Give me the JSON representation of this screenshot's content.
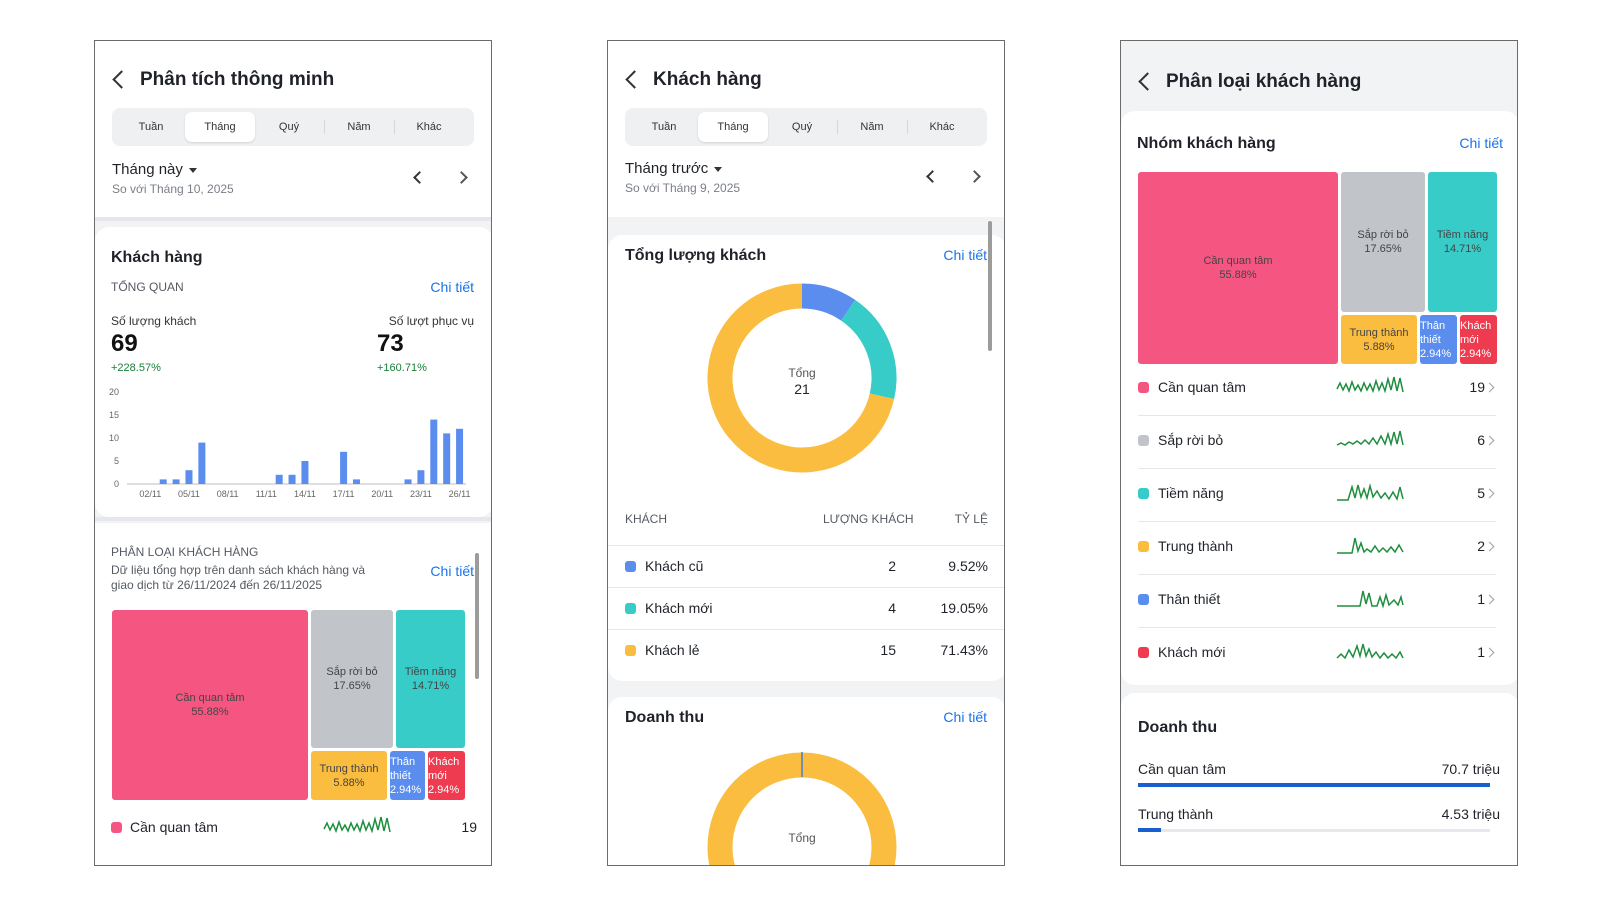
{
  "screen1": {
    "title": "Phân tích thông minh",
    "tabs": [
      "Tuần",
      "Tháng",
      "Quý",
      "Năm",
      "Khác"
    ],
    "active_tab": "Tháng",
    "period": "Tháng này",
    "compare": "So với Tháng 10, 2025",
    "customers": {
      "title": "Khách hàng",
      "overview_label": "TỔNG QUAN",
      "detail": "Chi tiết",
      "metric1_label": "Số lượng khách",
      "metric1_value": "69",
      "metric1_growth": "+228.57%",
      "metric2_label": "Số lượt phục vụ",
      "metric2_value": "73",
      "metric2_growth": "+160.71%"
    },
    "classification": {
      "title": "PHÂN LOẠI KHÁCH HÀNG",
      "desc_line1": "Dữ liệu tổng hợp trên danh sách khách hàng và",
      "desc_line2": "giao dịch từ 26/11/2024 đến 26/11/2025",
      "detail": "Chi tiết",
      "first_row_label": "Cần quan tâm",
      "first_row_value": "19"
    }
  },
  "chart_data": {
    "type": "bar",
    "title": "",
    "ylim": [
      0,
      20
    ],
    "yticks": [
      "0",
      "5",
      "10",
      "15",
      "20"
    ],
    "x_tick_labels": [
      "02/11",
      "05/11",
      "08/11",
      "11/11",
      "14/11",
      "17/11",
      "20/11",
      "23/11",
      "26/11"
    ],
    "days": [
      "01/11",
      "02/11",
      "03/11",
      "04/11",
      "05/11",
      "06/11",
      "07/11",
      "08/11",
      "09/11",
      "10/11",
      "11/11",
      "12/11",
      "13/11",
      "14/11",
      "15/11",
      "16/11",
      "17/11",
      "18/11",
      "19/11",
      "20/11",
      "21/11",
      "22/11",
      "23/11",
      "24/11",
      "25/11",
      "26/11"
    ],
    "values": [
      0,
      0,
      1,
      1,
      3,
      9,
      0,
      0,
      0,
      0,
      0,
      2,
      2,
      5,
      0,
      0,
      7,
      1,
      0,
      0,
      0,
      1,
      3,
      14,
      11,
      12
    ],
    "color": "#5b8def",
    "grid": false
  },
  "segments": {
    "can_quan_tam": {
      "name": "Cần quan tâm",
      "pct": "55.88%",
      "count": "19",
      "color": "#f55681"
    },
    "sap_roi_bo": {
      "name": "Sắp rời bỏ",
      "pct": "17.65%",
      "count": "6",
      "color": "#c1c4c9"
    },
    "tiem_nang": {
      "name": "Tiềm năng",
      "pct": "14.71%",
      "count": "5",
      "color": "#38ccc8"
    },
    "trung_thanh": {
      "name": "Trung thành",
      "pct": "5.88%",
      "count": "2",
      "color": "#fbbd3f"
    },
    "than_thiet": {
      "name_l1": "Thân",
      "name_l2": "thiết",
      "name": "Thân thiết",
      "pct": "2.94%",
      "count": "1",
      "color": "#5b8def"
    },
    "khach_moi": {
      "name_l1": "Khách",
      "name_l2": "mới",
      "name": "Khách mới",
      "pct": "2.94%",
      "count": "1",
      "color": "#ee3b4f"
    }
  },
  "screen2": {
    "title": "Khách hàng",
    "tabs": [
      "Tuần",
      "Tháng",
      "Quý",
      "Năm",
      "Khác"
    ],
    "active_tab": "Tháng",
    "period": "Tháng trước",
    "compare": "So với Tháng 9, 2025",
    "total_card": {
      "title": "Tổng lượng khách",
      "detail": "Chi tiết",
      "center_label": "Tổng",
      "center_value": "21",
      "col1": "KHÁCH",
      "col2": "LƯỢNG KHÁCH",
      "col3": "TỶ LỆ",
      "rows": [
        {
          "name": "Khách cũ",
          "count": "2",
          "pct": "9.52%",
          "color": "#5b8def",
          "value": 2
        },
        {
          "name": "Khách mới",
          "count": "4",
          "pct": "19.05%",
          "color": "#38ccc8",
          "value": 4
        },
        {
          "name": "Khách lẻ",
          "count": "15",
          "pct": "71.43%",
          "color": "#fbbd3f",
          "value": 15
        }
      ]
    },
    "revenue_card": {
      "title": "Doanh thu",
      "detail": "Chi tiết",
      "center_label": "Tổng"
    }
  },
  "screen3": {
    "title": "Phân loại khách hàng",
    "group_title": "Nhóm khách hàng",
    "detail": "Chi tiết",
    "revenue_title": "Doanh thu",
    "revenue_rows": [
      {
        "name": "Cần quan tâm",
        "value": "70.7 triệu",
        "fraction": 1.0
      },
      {
        "name": "Trung thành",
        "value": "4.53 triệu",
        "fraction": 0.064
      }
    ]
  }
}
